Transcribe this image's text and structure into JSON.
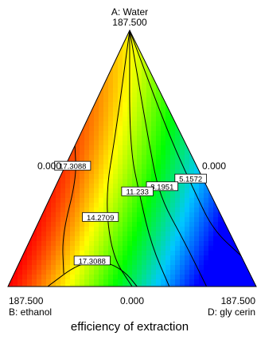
{
  "chart_data": {
    "type": "heatmap",
    "subtype": "ternary mixture contour plot",
    "title": "efficiency of extraction",
    "vertices": {
      "top": {
        "label": "A: Water",
        "max": "187.500"
      },
      "left": {
        "label": "B: ethanol",
        "max": "187.500"
      },
      "right": {
        "label": "D: gly cerin",
        "max": "187.500"
      }
    },
    "edge_min_labels": {
      "left_edge": "0.000",
      "right_edge": "0.000",
      "bottom_edge": "0.000"
    },
    "response_range": [
      0.0,
      20.0
    ],
    "color_scale": [
      "#0000ff",
      "#00c8ff",
      "#00ff00",
      "#ffff00",
      "#ff0000"
    ],
    "contours": [
      {
        "value": "5.1572"
      },
      {
        "value": "8.1951"
      },
      {
        "value": "11.233"
      },
      {
        "value": "14.2709"
      },
      {
        "value": "17.3088"
      },
      {
        "value": "17.3088"
      }
    ],
    "grid": false,
    "legend": "none"
  }
}
